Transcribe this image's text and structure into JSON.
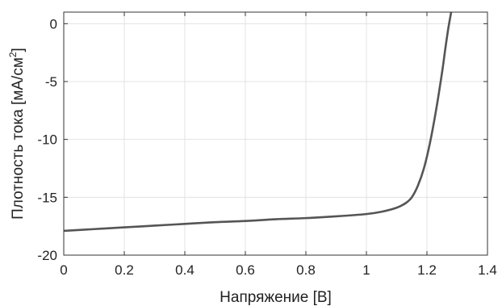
{
  "chart_data": {
    "type": "line",
    "title": "",
    "xlabel": "Напряжение [В]",
    "ylabel_main": "Плотность тока [мА/см",
    "ylabel_sup": "2",
    "ylabel_end": "]",
    "xlim": [
      0,
      1.4
    ],
    "ylim": [
      -20,
      1
    ],
    "xticks": [
      0,
      0.2,
      0.4,
      0.6,
      0.8,
      1,
      1.2,
      1.4
    ],
    "xtick_labels": [
      "0",
      "0.2",
      "0.4",
      "0.6",
      "0.8",
      "1",
      "1.2",
      "1.4"
    ],
    "yticks": [
      -20,
      -15,
      -10,
      -5,
      0
    ],
    "ytick_labels": [
      "-20",
      "-15",
      "-10",
      "-5",
      "0"
    ],
    "grid": true,
    "series": [
      {
        "color": "#555555",
        "x": [
          0,
          0.1,
          0.2,
          0.3,
          0.4,
          0.5,
          0.6,
          0.7,
          0.8,
          0.9,
          1.0,
          1.05,
          1.1,
          1.13,
          1.15,
          1.17,
          1.19,
          1.21,
          1.23,
          1.25,
          1.26,
          1.27,
          1.28
        ],
        "y": [
          -17.9,
          -17.75,
          -17.6,
          -17.45,
          -17.3,
          -17.15,
          -17.05,
          -16.9,
          -16.8,
          -16.65,
          -16.45,
          -16.25,
          -15.9,
          -15.5,
          -15.0,
          -14.0,
          -12.5,
          -10.3,
          -7.5,
          -4.2,
          -2.3,
          -0.5,
          1.0
        ]
      }
    ]
  }
}
